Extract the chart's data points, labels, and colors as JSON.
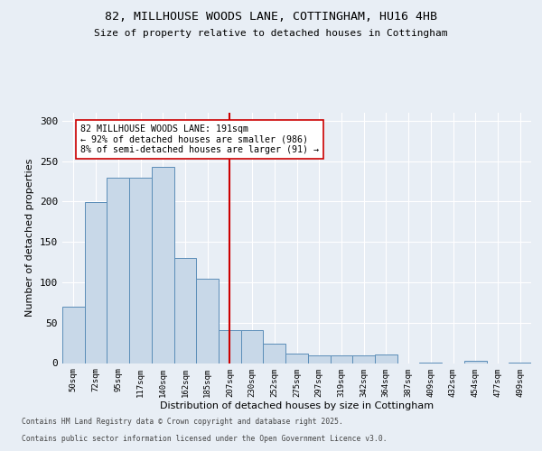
{
  "title1": "82, MILLHOUSE WOODS LANE, COTTINGHAM, HU16 4HB",
  "title2": "Size of property relative to detached houses in Cottingham",
  "xlabel": "Distribution of detached houses by size in Cottingham",
  "ylabel": "Number of detached properties",
  "bar_labels": [
    "50sqm",
    "72sqm",
    "95sqm",
    "117sqm",
    "140sqm",
    "162sqm",
    "185sqm",
    "207sqm",
    "230sqm",
    "252sqm",
    "275sqm",
    "297sqm",
    "319sqm",
    "342sqm",
    "364sqm",
    "387sqm",
    "409sqm",
    "432sqm",
    "454sqm",
    "477sqm",
    "499sqm"
  ],
  "bar_values": [
    70,
    199,
    230,
    230,
    243,
    130,
    104,
    41,
    41,
    24,
    12,
    10,
    9,
    10,
    11,
    0,
    1,
    0,
    3,
    0,
    1
  ],
  "bar_color": "#c8d8e8",
  "bar_edge_color": "#5b8db8",
  "vline_color": "#cc0000",
  "annotation_text": "82 MILLHOUSE WOODS LANE: 191sqm\n← 92% of detached houses are smaller (986)\n8% of semi-detached houses are larger (91) →",
  "annotation_box_color": "#ffffff",
  "annotation_box_edge": "#cc0000",
  "footer1": "Contains HM Land Registry data © Crown copyright and database right 2025.",
  "footer2": "Contains public sector information licensed under the Open Government Licence v3.0.",
  "bg_color": "#e8eef5",
  "plot_bg_color": "#e8eef5",
  "ylim": [
    0,
    310
  ],
  "yticks": [
    0,
    50,
    100,
    150,
    200,
    250,
    300
  ]
}
